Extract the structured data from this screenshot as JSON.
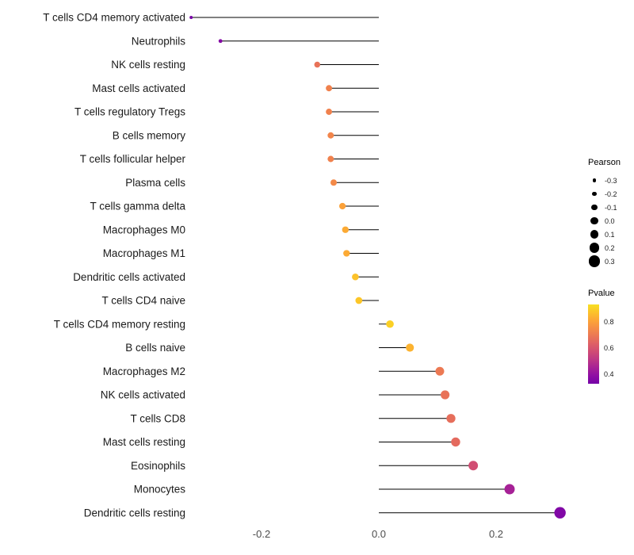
{
  "chart_data": {
    "type": "lollipop",
    "title": "",
    "xlabel": "",
    "ylabel": "",
    "xlim": [
      -0.345,
      0.35
    ],
    "grid": false,
    "legend_position": "right",
    "x_ticks": [
      -0.2,
      0.0,
      0.2
    ],
    "x_tick_labels": [
      "-0.2",
      "0.0",
      "0.2"
    ],
    "points": [
      {
        "category": "T cells CD4 memory activated",
        "pearson": -0.32,
        "pvalue": 0.34
      },
      {
        "category": "Neutrophils",
        "pearson": -0.27,
        "pvalue": 0.37
      },
      {
        "category": "NK cells resting",
        "pearson": -0.105,
        "pvalue": 0.68
      },
      {
        "category": "Mast cells activated",
        "pearson": -0.085,
        "pvalue": 0.72
      },
      {
        "category": "T cells regulatory Tregs",
        "pearson": -0.085,
        "pvalue": 0.72
      },
      {
        "category": "B cells memory",
        "pearson": -0.082,
        "pvalue": 0.73
      },
      {
        "category": "T cells follicular helper",
        "pearson": -0.082,
        "pvalue": 0.72
      },
      {
        "category": "Plasma cells",
        "pearson": -0.077,
        "pvalue": 0.74
      },
      {
        "category": "T cells gamma delta",
        "pearson": -0.062,
        "pvalue": 0.8
      },
      {
        "category": "Macrophages M0",
        "pearson": -0.057,
        "pvalue": 0.82
      },
      {
        "category": "Macrophages M1",
        "pearson": -0.055,
        "pvalue": 0.82
      },
      {
        "category": "Dendritic cells activated",
        "pearson": -0.04,
        "pvalue": 0.87
      },
      {
        "category": "T cells CD4 naive",
        "pearson": -0.034,
        "pvalue": 0.88
      },
      {
        "category": "T cells CD4 memory resting",
        "pearson": 0.019,
        "pvalue": 0.9
      },
      {
        "category": "B cells naive",
        "pearson": 0.053,
        "pvalue": 0.84
      },
      {
        "category": "Macrophages M2",
        "pearson": 0.104,
        "pvalue": 0.7
      },
      {
        "category": "NK cells activated",
        "pearson": 0.113,
        "pvalue": 0.68
      },
      {
        "category": "T cells CD8",
        "pearson": 0.123,
        "pvalue": 0.67
      },
      {
        "category": "Mast cells resting",
        "pearson": 0.131,
        "pvalue": 0.66
      },
      {
        "category": "Eosinophils",
        "pearson": 0.161,
        "pvalue": 0.58
      },
      {
        "category": "Monocytes",
        "pearson": 0.223,
        "pvalue": 0.45
      },
      {
        "category": "Dendritic cells resting",
        "pearson": 0.309,
        "pvalue": 0.36
      }
    ],
    "legend": {
      "size": {
        "title": "Pearson",
        "values": [
          -0.3,
          -0.2,
          -0.1,
          0.0,
          0.1,
          0.2,
          0.3
        ],
        "labels": [
          "-0.3",
          "-0.2",
          "-0.1",
          "0.0",
          "0.1",
          "0.2",
          "0.3"
        ]
      },
      "color": {
        "title": "Pvalue",
        "tick_values": [
          0.8,
          0.6,
          0.4
        ],
        "tick_labels": [
          "0.8",
          "0.6",
          "0.4"
        ],
        "bar_range": [
          0.93,
          0.33
        ]
      }
    },
    "size_scale": {
      "domain": [
        -0.32,
        0.31
      ],
      "radius": [
        2.0,
        7.2
      ]
    },
    "color_scale": {
      "name": "plasma",
      "domain": [
        0.14,
        0.98
      ],
      "stops": [
        [
          0,
          "#0d0887"
        ],
        [
          0.1,
          "#41049d"
        ],
        [
          0.2,
          "#6a00a8"
        ],
        [
          0.3,
          "#8f0da4"
        ],
        [
          0.4,
          "#b12a90"
        ],
        [
          0.5,
          "#cc4778"
        ],
        [
          0.6,
          "#e16462"
        ],
        [
          0.7,
          "#f2844b"
        ],
        [
          0.8,
          "#fca636"
        ],
        [
          0.9,
          "#fcce25"
        ],
        [
          1,
          "#f0f921"
        ]
      ]
    },
    "colors": {
      "stem": "#000000",
      "background": "#ffffff"
    }
  }
}
